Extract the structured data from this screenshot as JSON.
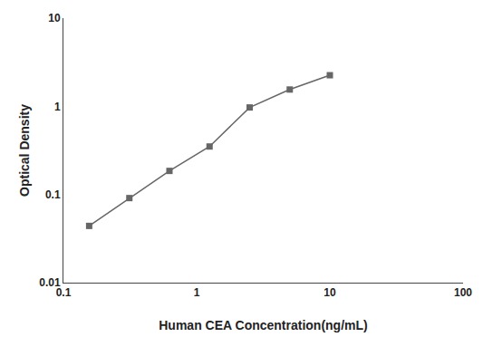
{
  "chart_data": {
    "type": "line",
    "x": [
      0.156,
      0.3125,
      0.625,
      1.25,
      2.5,
      5.0,
      10.0
    ],
    "values": [
      0.044,
      0.091,
      0.185,
      0.35,
      0.97,
      1.55,
      2.25
    ],
    "xlabel": "Human CEA Concentration(ng/mL)",
    "ylabel": "Optical Density",
    "xlim": [
      0.1,
      100
    ],
    "ylim": [
      0.01,
      10
    ],
    "xticks": [
      0.1,
      1,
      10,
      100
    ],
    "yticks": [
      0.01,
      0.1,
      1,
      10
    ],
    "log": true,
    "grid": false,
    "color": "#666666",
    "marker": "square"
  }
}
